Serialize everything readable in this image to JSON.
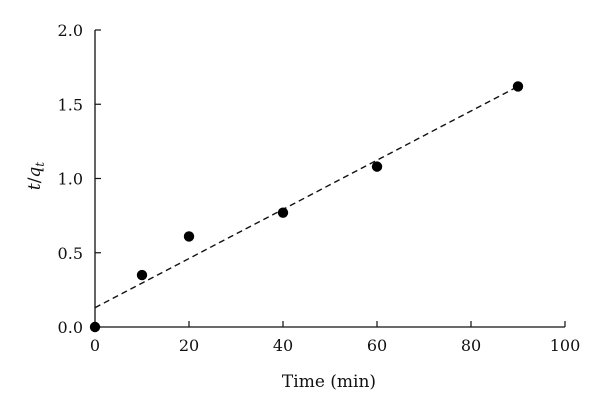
{
  "chart_data": {
    "type": "scatter",
    "title": "",
    "xlabel": "Time (min)",
    "ylabel": "t/q_t",
    "xlim": [
      0,
      100
    ],
    "ylim": [
      0,
      2.0
    ],
    "x_ticks": [
      0,
      20,
      40,
      60,
      80,
      100
    ],
    "y_ticks": [
      0.0,
      0.5,
      1.0,
      1.5,
      2.0
    ],
    "x_tick_labels": [
      "0",
      "20",
      "40",
      "60",
      "80",
      "100"
    ],
    "y_tick_labels": [
      "0.0",
      "0.5",
      "1.0",
      "1.5",
      "2.0"
    ],
    "grid": false,
    "series": [
      {
        "marker": "filled-circle",
        "color": "#000000",
        "x": [
          0,
          10,
          20,
          40,
          60,
          90
        ],
        "y": [
          0.0,
          0.35,
          0.61,
          0.77,
          1.08,
          1.62
        ]
      }
    ],
    "fit_line": {
      "style": "dashed",
      "color": "#111111",
      "x": [
        0,
        90
      ],
      "y": [
        0.13,
        1.62
      ]
    }
  }
}
